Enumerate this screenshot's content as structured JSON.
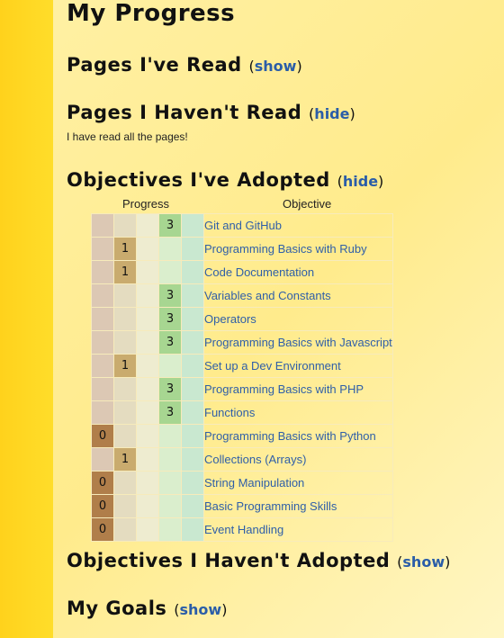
{
  "page": {
    "title": "My Progress",
    "pages_read": {
      "title": "Pages I've Read",
      "toggle": "show"
    },
    "pages_not_read": {
      "title": "Pages I Haven't Read",
      "toggle": "hide",
      "note": "I have read all the pages!"
    },
    "objectives_adopted": {
      "title": "Objectives I've Adopted",
      "toggle": "hide",
      "columns": {
        "progress": "Progress",
        "objective": "Objective"
      },
      "rows": [
        {
          "name": "Git and GitHub",
          "level": 3
        },
        {
          "name": "Programming Basics with Ruby",
          "level": 1
        },
        {
          "name": "Code Documentation",
          "level": 1
        },
        {
          "name": "Variables and Constants",
          "level": 3
        },
        {
          "name": "Operators",
          "level": 3
        },
        {
          "name": "Programming Basics with Javascript",
          "level": 3
        },
        {
          "name": "Set up a Dev Environment",
          "level": 1
        },
        {
          "name": "Programming Basics with PHP",
          "level": 3
        },
        {
          "name": "Functions",
          "level": 3
        },
        {
          "name": "Programming Basics with Python",
          "level": 0
        },
        {
          "name": "Collections (Arrays)",
          "level": 1
        },
        {
          "name": "String Manipulation",
          "level": 0
        },
        {
          "name": "Basic Programming Skills",
          "level": 0
        },
        {
          "name": "Event Handling",
          "level": 0
        }
      ]
    },
    "objectives_not_adopted": {
      "title": "Objectives I Haven't Adopted",
      "toggle": "show"
    },
    "goals": {
      "title": "My Goals",
      "toggle": "show"
    }
  },
  "colors": {
    "link": "#2f5fa8",
    "sidebar": "#ffd21c",
    "background": "#ffec93"
  }
}
